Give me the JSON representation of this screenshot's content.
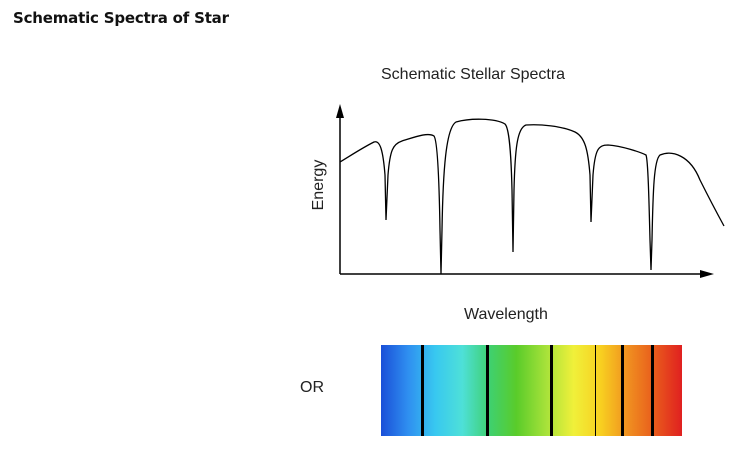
{
  "page": {
    "title": "Schematic Spectra of Star"
  },
  "diagram": {
    "title": "Schematic Stellar Spectra",
    "x_axis_label": "Wavelength",
    "y_axis_label": "Energy",
    "alternative_label": "OR",
    "spectrum_colors": [
      "#1a4fd8",
      "#2f8ff0",
      "#38c8f0",
      "#4ee0d8",
      "#3fd070",
      "#5acc2a",
      "#a8e23a",
      "#f0f03a",
      "#f8d020",
      "#f09020",
      "#e85a1c",
      "#e02020"
    ],
    "absorption_line_color": "#000000",
    "curve_color": "#000000"
  }
}
